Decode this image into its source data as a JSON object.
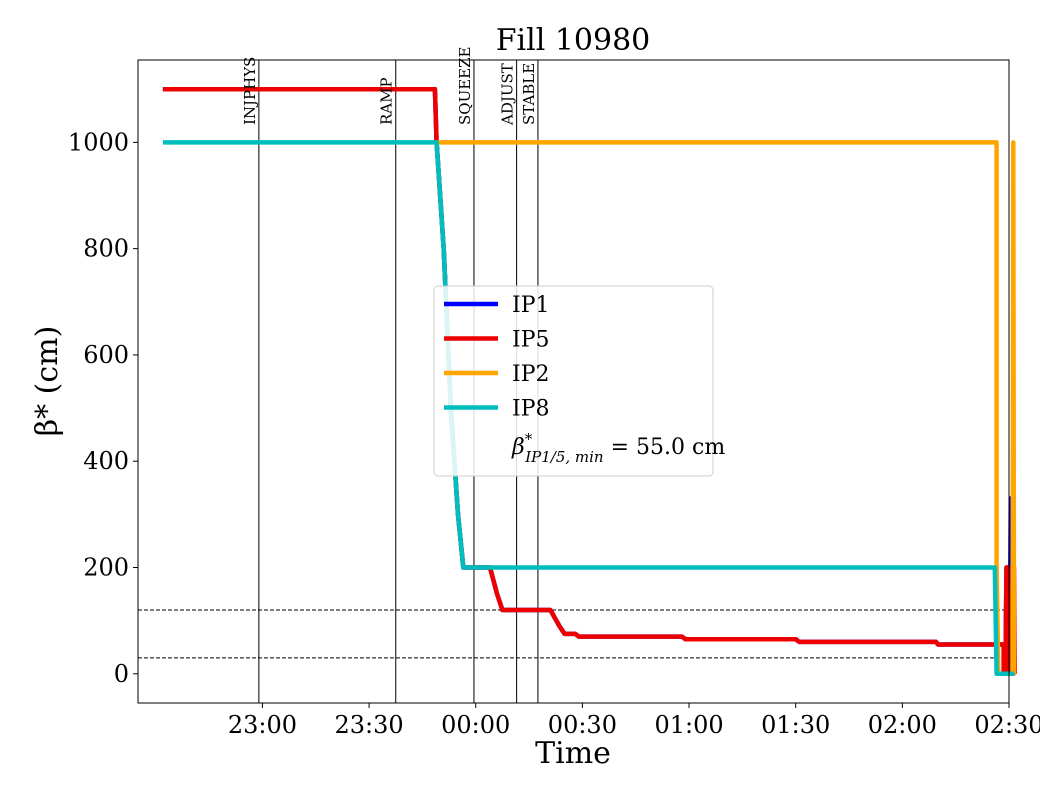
{
  "chart_data": {
    "type": "line",
    "title": "Fill 10980",
    "xlabel": "Time",
    "ylabel": "β* (cm)",
    "xlim_minutes": [
      -95,
      150
    ],
    "ylim": [
      -55,
      1155
    ],
    "x_ticks": [
      {
        "label": "23:00",
        "t": -60
      },
      {
        "label": "23:30",
        "t": -30
      },
      {
        "label": "00:00",
        "t": 0
      },
      {
        "label": "00:30",
        "t": 30
      },
      {
        "label": "01:00",
        "t": 60
      },
      {
        "label": "01:30",
        "t": 90
      },
      {
        "label": "02:00",
        "t": 120
      },
      {
        "label": "02:30",
        "t": 150
      }
    ],
    "y_ticks": [
      0,
      200,
      400,
      600,
      800,
      1000
    ],
    "phases": [
      {
        "name": "INJPHYS",
        "t": -61
      },
      {
        "name": "RAMP",
        "t": -22.5
      },
      {
        "name": "SQUEEZE",
        "t": -0.5
      },
      {
        "name": "ADJUST",
        "t": 11.5
      },
      {
        "name": "STABLE",
        "t": 17.5
      }
    ],
    "h_lines": [
      120,
      30
    ],
    "series": [
      {
        "name": "IP1",
        "color": "#0000ff",
        "points": [
          [
            -88,
            1100
          ],
          [
            -11.5,
            1100
          ],
          [
            -11,
            1000
          ],
          [
            -9,
            800
          ],
          [
            -7,
            500
          ],
          [
            -5,
            300
          ],
          [
            -3.5,
            200
          ],
          [
            4,
            200
          ],
          [
            6,
            150
          ],
          [
            7.5,
            120
          ],
          [
            21,
            120
          ],
          [
            23.5,
            90
          ],
          [
            25,
            75
          ],
          [
            28,
            75
          ],
          [
            29,
            70
          ],
          [
            58,
            70
          ],
          [
            59,
            65
          ],
          [
            90,
            65
          ],
          [
            91,
            60
          ],
          [
            129.5,
            60
          ],
          [
            130,
            55
          ],
          [
            148.5,
            55
          ],
          [
            148.5,
            0
          ],
          [
            149,
            0
          ],
          [
            149.3,
            200
          ],
          [
            149.7,
            200
          ],
          [
            150,
            0
          ],
          [
            150.2,
            0
          ],
          [
            150.5,
            330
          ],
          [
            150.8,
            0
          ],
          [
            151,
            0
          ],
          [
            151.2,
            200
          ],
          [
            151.6,
            200
          ]
        ]
      },
      {
        "name": "IP5",
        "color": "#ee0000",
        "points": [
          [
            -88,
            1100
          ],
          [
            -11.5,
            1100
          ],
          [
            -11,
            1000
          ],
          [
            -9,
            800
          ],
          [
            -7,
            500
          ],
          [
            -5,
            300
          ],
          [
            -3.5,
            200
          ],
          [
            4,
            200
          ],
          [
            6,
            150
          ],
          [
            7.5,
            120
          ],
          [
            21,
            120
          ],
          [
            23.5,
            90
          ],
          [
            25,
            75
          ],
          [
            28,
            75
          ],
          [
            29,
            70
          ],
          [
            58,
            70
          ],
          [
            59,
            65
          ],
          [
            90,
            65
          ],
          [
            91,
            60
          ],
          [
            129.5,
            60
          ],
          [
            130,
            55
          ],
          [
            148.5,
            55
          ],
          [
            148.5,
            0
          ],
          [
            149,
            0
          ],
          [
            149.3,
            200
          ],
          [
            149.7,
            200
          ],
          [
            150,
            0
          ],
          [
            151.2,
            0
          ],
          [
            151.4,
            200
          ],
          [
            151.6,
            0
          ]
        ]
      },
      {
        "name": "IP2",
        "color": "#ffa500",
        "points": [
          [
            -11,
            1000
          ],
          [
            146.5,
            1000
          ],
          [
            146.5,
            200
          ],
          [
            147,
            0
          ],
          [
            151,
            0
          ],
          [
            151.2,
            1000
          ],
          [
            151.4,
            0
          ]
        ]
      },
      {
        "name": "IP8",
        "color": "#00bebe",
        "points": [
          [
            -88,
            1000
          ],
          [
            -11,
            1000
          ],
          [
            -9,
            800
          ],
          [
            -7,
            500
          ],
          [
            -5,
            300
          ],
          [
            -3.5,
            200
          ],
          [
            146,
            200
          ],
          [
            146.5,
            0
          ],
          [
            151.5,
            0
          ]
        ]
      }
    ],
    "legend": {
      "placement": "center",
      "entries": [
        {
          "label": "IP1",
          "color": "#0000ff"
        },
        {
          "label": "IP5",
          "color": "#ee0000"
        },
        {
          "label": "IP2",
          "color": "#ffa500"
        },
        {
          "label": "IP8",
          "color": "#00bebe"
        }
      ],
      "min_note": {
        "label": "β*IP1/5, min = 55.0 cm",
        "symbol": "β",
        "sup": "*",
        "sub": "IP1/5, min",
        "rest": " = 55.0 cm"
      }
    }
  }
}
